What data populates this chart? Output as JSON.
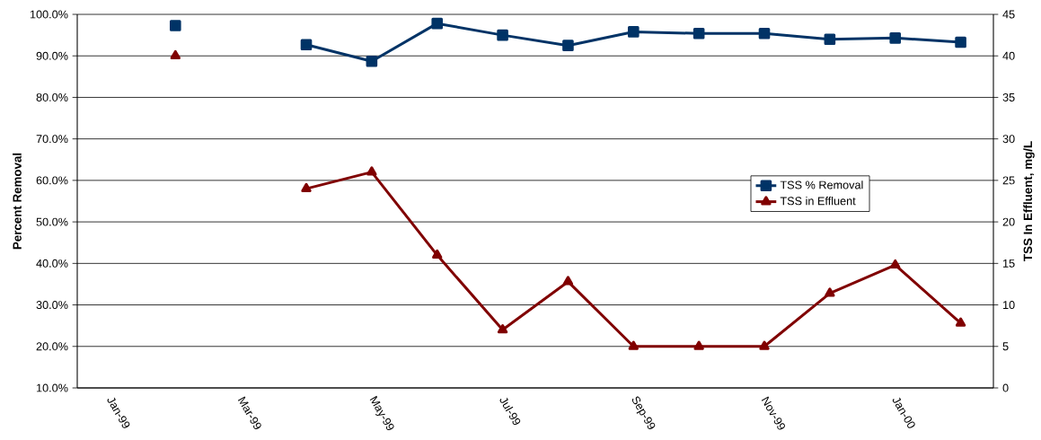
{
  "chart_data": {
    "type": "line",
    "categories": [
      "Jan-99",
      null,
      "Mar-99",
      null,
      "May-99",
      null,
      "Jul-99",
      null,
      "Sep-99",
      null,
      "Nov-99",
      null,
      "Jan-00",
      null
    ],
    "series": [
      {
        "name": "TSS % Removal",
        "color": "#003366",
        "marker": "square",
        "values": [
          null,
          97.3,
          null,
          92.7,
          88.7,
          97.8,
          95.0,
          92.5,
          95.8,
          95.4,
          95.4,
          94.0,
          94.3,
          93.3
        ]
      },
      {
        "name": "TSS in Effluent",
        "color": "#800000",
        "marker": "triangle",
        "axis": "y2",
        "values": [
          null,
          40,
          null,
          24,
          26,
          16,
          7,
          12.8,
          5,
          5,
          5,
          11.4,
          14.8,
          7.8
        ]
      }
    ],
    "ylabel": "Percent Removal",
    "y2label": "TSS In Effluent, mg/L",
    "ylim": [
      10,
      100
    ],
    "yticks": [
      {
        "value": 10,
        "label": "10.0%"
      },
      {
        "value": 20,
        "label": "20.0%"
      },
      {
        "value": 30,
        "label": "30.0%"
      },
      {
        "value": 40,
        "label": "40.0%"
      },
      {
        "value": 50,
        "label": "50.0%"
      },
      {
        "value": 60,
        "label": "60.0%"
      },
      {
        "value": 70,
        "label": "70.0%"
      },
      {
        "value": 80,
        "label": "80.0%"
      },
      {
        "value": 90,
        "label": "90.0%"
      },
      {
        "value": 100,
        "label": "100.0%"
      }
    ],
    "y2lim": [
      0,
      45
    ],
    "y2ticks": [
      0,
      5,
      10,
      15,
      20,
      25,
      30,
      35,
      40,
      45
    ],
    "grid": "y",
    "legend": "right"
  }
}
